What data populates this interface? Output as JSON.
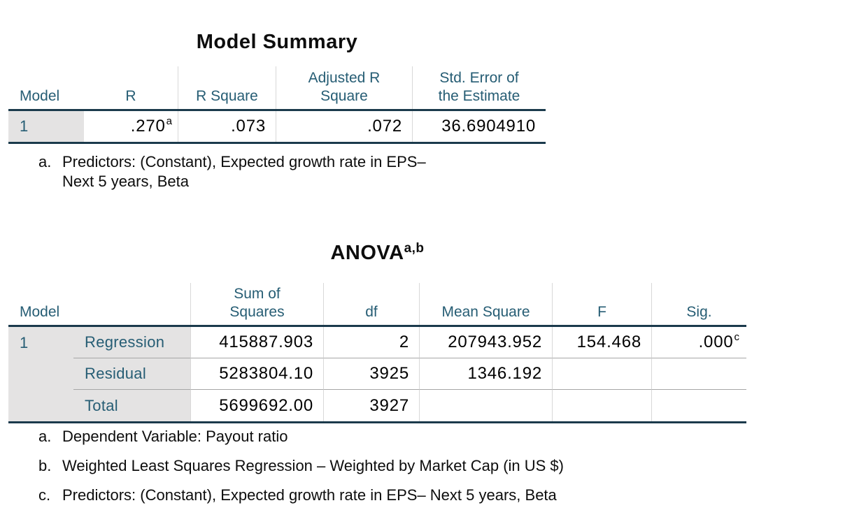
{
  "colors": {
    "header_text_teal": "#265d74",
    "rule_dark": "#1b3a4c",
    "stub_gray": "#e4e3e3",
    "column_separator": "#d8d8d8",
    "row_divider": "#a6a6a6",
    "background": "#ffffff"
  },
  "model_summary": {
    "title": "Model Summary",
    "headers": {
      "model": "Model",
      "r": "R",
      "r_square": "R Square",
      "adj_r_square": "Adjusted R\nSquare",
      "std_error": "Std. Error of\nthe Estimate"
    },
    "row": {
      "model": "1",
      "r": ".270",
      "r_sup": "a",
      "r_square": ".073",
      "adj_r_square": ".072",
      "std_error": "36.6904910"
    },
    "footnote": {
      "marker": "a.",
      "line1": "Predictors: (Constant), Expected growth rate in EPS–",
      "line2": "Next 5 years, Beta"
    }
  },
  "anova": {
    "title": "ANOVA",
    "title_sup": "a,b",
    "headers": {
      "model": "Model",
      "sum_of_squares": "Sum of\nSquares",
      "df": "df",
      "mean_square": "Mean Square",
      "f": "F",
      "sig": "Sig."
    },
    "rows": [
      {
        "model": "1",
        "label": "Regression",
        "sum_of_squares": "415887.903",
        "df": "2",
        "mean_square": "207943.952",
        "f": "154.468",
        "sig": ".000",
        "sig_sup": "c"
      },
      {
        "model": "",
        "label": "Residual",
        "sum_of_squares": "5283804.10",
        "df": "3925",
        "mean_square": "1346.192",
        "f": "",
        "sig": "",
        "sig_sup": ""
      },
      {
        "model": "",
        "label": "Total",
        "sum_of_squares": "5699692.00",
        "df": "3927",
        "mean_square": "",
        "f": "",
        "sig": "",
        "sig_sup": ""
      }
    ],
    "footnotes": [
      {
        "marker": "a.",
        "text": "Dependent Variable: Payout ratio"
      },
      {
        "marker": "b.",
        "text": "Weighted Least Squares Regression – Weighted by Market Cap (in US $)"
      },
      {
        "marker": "c.",
        "text": "Predictors: (Constant), Expected growth rate in EPS– Next 5 years, Beta"
      }
    ]
  }
}
